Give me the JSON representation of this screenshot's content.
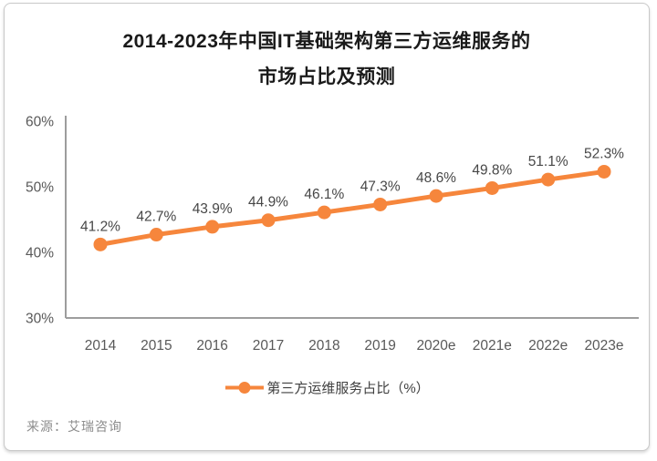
{
  "title": {
    "lines": [
      "2014-2023年中国IT基础架构第三方运维服务的",
      "市场占比及预测"
    ]
  },
  "chart_data": {
    "type": "line",
    "title": "2014-2023年中国IT基础架构第三方运维服务的市场占比及预测",
    "categories": [
      "2014",
      "2015",
      "2016",
      "2017",
      "2018",
      "2019",
      "2020e",
      "2021e",
      "2022e",
      "2023e"
    ],
    "series": [
      {
        "name": "第三方运维服务占比（%）",
        "values": [
          41.2,
          42.7,
          43.9,
          44.9,
          46.1,
          47.3,
          48.6,
          49.8,
          51.1,
          52.3
        ],
        "color": "#F6863C"
      }
    ],
    "xlabel": "",
    "ylabel": "",
    "ylim": [
      30,
      60
    ],
    "yticks": [
      30,
      40,
      50,
      60
    ],
    "ytick_labels": [
      "30%",
      "40%",
      "50%",
      "60%"
    ],
    "grid": false,
    "legend_position": "bottom",
    "data_labels": true,
    "data_label_suffix": "%"
  },
  "source": {
    "label": "来源：艾瑞咨询"
  },
  "colors": {
    "accent": "#F6863C",
    "axis": "#9D9D9D",
    "tick_text": "#595959",
    "data_label": "#474747",
    "title_text": "#1A1A1A",
    "source_text": "#8C8C8C",
    "card_border": "#C9C9C9"
  }
}
